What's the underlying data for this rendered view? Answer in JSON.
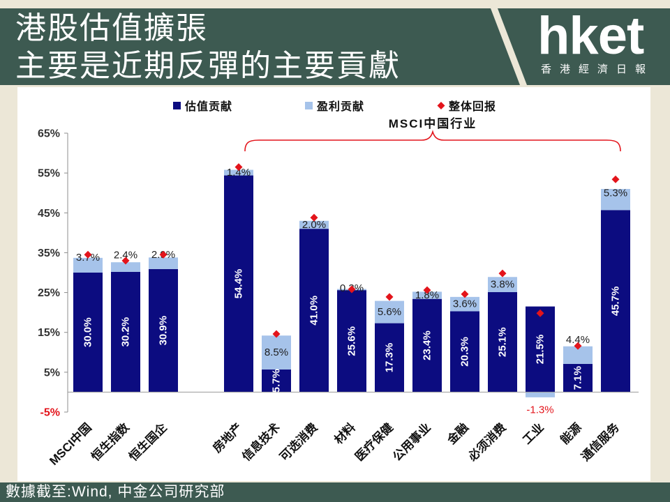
{
  "header": {
    "title_lines": [
      "港股估值擴張",
      "主要是近期反彈的主要貢獻"
    ],
    "logo": {
      "wordmark": "hket",
      "subtitle": "香港經濟日報"
    }
  },
  "chart_data": {
    "type": "bar",
    "stacked": true,
    "categories": [
      "MSCI中国",
      "恒生指数",
      "恒生国企",
      "房地产",
      "信息技术",
      "可选消费",
      "材料",
      "医疗保健",
      "公用事业",
      "金融",
      "必须消费",
      "工业",
      "能源",
      "通信服务"
    ],
    "group": {
      "label": "MSCI中国行业",
      "from": "房地产",
      "to": "通信服务",
      "color": "#e3141b"
    },
    "series": [
      {
        "name": "估值贡献",
        "type": "bar",
        "color": "#0c0c80",
        "values": [
          30.0,
          30.2,
          30.9,
          54.4,
          5.7,
          41.0,
          25.6,
          17.3,
          23.4,
          20.3,
          25.1,
          21.5,
          7.1,
          45.7
        ],
        "labels": [
          "30.0%",
          "30.2%",
          "30.9%",
          "54.4%",
          "5.7%",
          "41.0%",
          "25.6%",
          "17.3%",
          "23.4%",
          "20.3%",
          "25.1%",
          "21.5%",
          "7.1%",
          "45.7%"
        ]
      },
      {
        "name": "盈利贡献",
        "type": "bar",
        "color": "#a6c3ea",
        "values": [
          3.7,
          2.4,
          2.9,
          1.4,
          8.5,
          2.0,
          0.3,
          5.6,
          1.8,
          3.6,
          3.8,
          -1.3,
          4.4,
          5.3
        ],
        "labels": [
          "3.7%",
          "2.4%",
          "2.9%",
          "1.4%",
          "8.5%",
          "2.0%",
          "0.3%",
          "5.6%",
          "1.8%",
          "3.6%",
          "3.8%",
          "-1.3%",
          "4.4%",
          "5.3%"
        ]
      },
      {
        "name": "整体回报",
        "type": "scatter",
        "marker": "diamond",
        "color": "#e3141b",
        "values": [
          34.5,
          33.0,
          34.5,
          56.5,
          14.6,
          43.8,
          25.8,
          23.9,
          25.6,
          24.6,
          29.8,
          19.8,
          11.6,
          53.4
        ]
      }
    ],
    "yticks": [
      65,
      55,
      45,
      35,
      25,
      15,
      5,
      -5
    ],
    "ytick_labels": [
      "65%",
      "55%",
      "45%",
      "35%",
      "25%",
      "15%",
      "5%",
      "-5%"
    ],
    "ylim": [
      -5,
      65
    ],
    "negative_color": "#e3141b",
    "grid": false,
    "legend": "top"
  },
  "footer": {
    "source": "數據截至:Wind, 中金公司研究部"
  },
  "colors": {
    "banner": "#3d5a51",
    "background": "#ece7d7"
  }
}
